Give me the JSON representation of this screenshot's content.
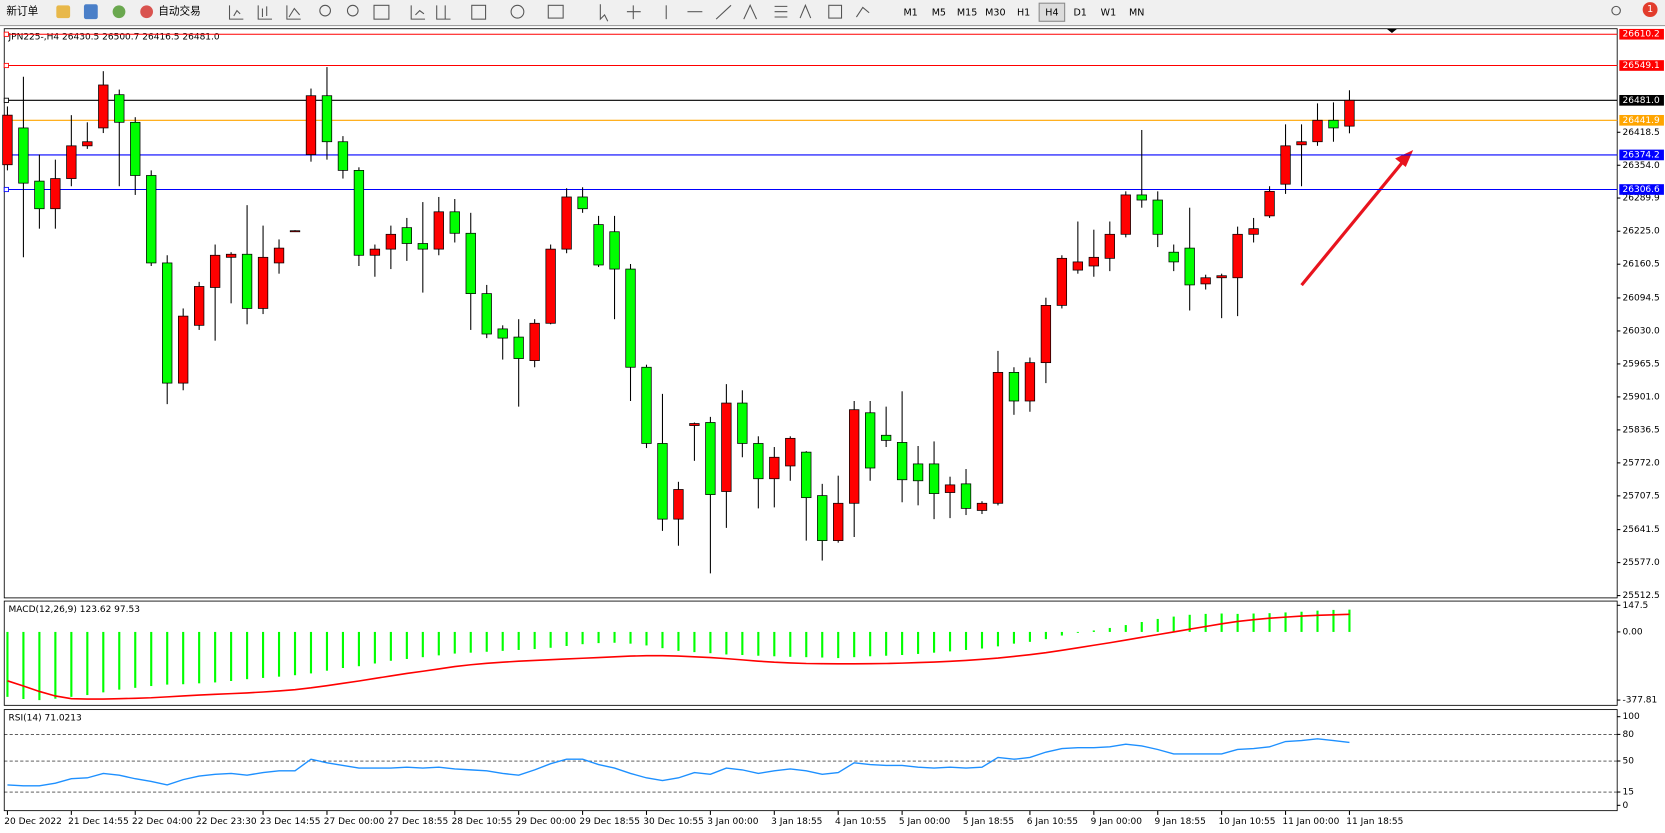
{
  "toolbar": {
    "new_order": "新订单",
    "auto_trading": "自动交易",
    "timeframes": [
      "M1",
      "M5",
      "M15",
      "M30",
      "H1",
      "H4",
      "D1",
      "W1",
      "MN"
    ],
    "active_timeframe": "H4",
    "notifications": 1
  },
  "chart_data": [
    {
      "type": "candlestick",
      "title": "JPN225-,H4  26430.5 26500.7 26416.5 26481.0",
      "up_color": "#ff0000",
      "down_color": "#00ff00",
      "ylim": [
        25508,
        26621
      ],
      "yticks": [
        26418.5,
        {
          "value": 26354.0,
          "label": "26354.0"
        },
        26289.9,
        {
          "value": 26225.0,
          "label": "26225.0"
        },
        26160.5,
        26094.5,
        {
          "value": 26030.0,
          "label": "26030.0"
        },
        25965.5,
        {
          "value": 25901.0,
          "label": "25901.0"
        },
        25836.5,
        {
          "value": 25772.0,
          "label": "25772.0"
        },
        25707.5,
        25641.5,
        {
          "value": 25577.0,
          "label": "25577.0"
        },
        25512.5
      ],
      "levels": [
        {
          "value": 26610.2,
          "label": "26610.2",
          "color": "#ff0000"
        },
        {
          "value": 26549.1,
          "label": "26549.1",
          "color": "#ff0000"
        },
        {
          "value": 26481.0,
          "label": "26481.0",
          "color": "#000000"
        },
        {
          "value": 26441.9,
          "label": "26441.9",
          "color": "#ffa500"
        },
        {
          "value": 26374.2,
          "label": "26374.2",
          "color": "#0000ff"
        },
        {
          "value": 26306.6,
          "label": "26306.6",
          "color": "#0000ff"
        }
      ],
      "categories": [
        "20 Dec 2022",
        null,
        null,
        null,
        "21 Dec 14:55",
        null,
        null,
        null,
        "22 Dec 04:00",
        null,
        null,
        null,
        "22 Dec 23:30",
        null,
        null,
        null,
        "23 Dec 14:55",
        null,
        null,
        null,
        "27 Dec 00:00",
        null,
        null,
        null,
        "27 Dec 18:55",
        null,
        null,
        null,
        "28 Dec 10:55",
        null,
        null,
        null,
        "29 Dec 00:00",
        null,
        null,
        null,
        "29 Dec 18:55",
        null,
        null,
        null,
        "30 Dec 10:55",
        null,
        null,
        null,
        "3 Jan 00:00",
        null,
        null,
        null,
        "3 Jan 18:55",
        null,
        null,
        null,
        "4 Jan 10:55",
        null,
        null,
        null,
        "5 Jan 00:00",
        null,
        null,
        null,
        "5 Jan 18:55",
        null,
        null,
        null,
        "6 Jan 10:55",
        null,
        null,
        null,
        "9 Jan 00:00",
        null,
        null,
        null,
        "9 Jan 18:55",
        null,
        null,
        null,
        "10 Jan 10:55",
        null,
        null,
        null,
        "11 Jan 00:00",
        null,
        null,
        null,
        "11 Jan 18:55"
      ],
      "ohlc": [
        [
          26355,
          26469,
          26344,
          26452
        ],
        [
          26427,
          26527,
          26174,
          26319
        ],
        [
          26323,
          26375,
          26230,
          26269
        ],
        [
          26269,
          26365,
          26230,
          26328
        ],
        [
          26328,
          26452,
          26313,
          26392
        ],
        [
          26392,
          26438,
          26386,
          26400
        ],
        [
          26427,
          26538,
          26417,
          26511
        ],
        [
          26492,
          26502,
          26313,
          26438
        ],
        [
          26438,
          26448,
          26296,
          26334
        ],
        [
          26334,
          26344,
          26157,
          26163
        ],
        [
          26163,
          26178,
          25887,
          25928
        ],
        [
          25928,
          26074,
          25914,
          26059
        ],
        [
          26041,
          26126,
          26032,
          26117
        ],
        [
          26115,
          26199,
          26011,
          26178
        ],
        [
          26174,
          26184,
          26084,
          26180
        ],
        [
          26180,
          26276,
          26043,
          26074
        ],
        [
          26074,
          26236,
          26063,
          26174
        ],
        [
          26163,
          26209,
          26142,
          26192
        ],
        [
          26226,
          26227,
          26225,
          26226
        ],
        [
          26375,
          26504,
          26361,
          26490
        ],
        [
          26490,
          26546,
          26365,
          26400
        ],
        [
          26400,
          26411,
          26328,
          26344
        ],
        [
          26344,
          26350,
          26157,
          26178
        ],
        [
          26178,
          26199,
          26136,
          26190
        ],
        [
          26190,
          26236,
          26151,
          26219
        ],
        [
          26232,
          26251,
          26167,
          26201
        ],
        [
          26201,
          26282,
          26105,
          26190
        ],
        [
          26190,
          26292,
          26178,
          26263
        ],
        [
          26263,
          26288,
          26203,
          26221
        ],
        [
          26221,
          26261,
          26032,
          26103
        ],
        [
          26103,
          26120,
          26016,
          26024
        ],
        [
          26034,
          26041,
          25974,
          26016
        ],
        [
          26018,
          26053,
          25882,
          25976
        ],
        [
          25972,
          26053,
          25959,
          26045
        ],
        [
          26045,
          26199,
          26043,
          26190
        ],
        [
          26190,
          26309,
          26182,
          26292
        ],
        [
          26292,
          26311,
          26261,
          26269
        ],
        [
          26238,
          26255,
          26155,
          26159
        ],
        [
          26224,
          26255,
          26053,
          26151
        ],
        [
          26151,
          26161,
          25893,
          25959
        ],
        [
          25959,
          25964,
          25801,
          25810
        ],
        [
          25810,
          25907,
          25639,
          25662
        ],
        [
          25662,
          25735,
          25610,
          25720
        ],
        [
          25845,
          25851,
          25776,
          25849
        ],
        [
          25851,
          25862,
          25556,
          25710
        ],
        [
          25716,
          25926,
          25645,
          25889
        ],
        [
          25889,
          25914,
          25783,
          25810
        ],
        [
          25810,
          25824,
          25683,
          25741
        ],
        [
          25741,
          25803,
          25685,
          25783
        ],
        [
          25766,
          25824,
          25737,
          25820
        ],
        [
          25793,
          25795,
          25620,
          25704
        ],
        [
          25708,
          25731,
          25581,
          25620
        ],
        [
          25620,
          25747,
          25616,
          25693
        ],
        [
          25693,
          25893,
          25627,
          25876
        ],
        [
          25870,
          25893,
          25737,
          25762
        ],
        [
          25826,
          25882,
          25803,
          25816
        ],
        [
          25812,
          25912,
          25695,
          25739
        ],
        [
          25770,
          25805,
          25689,
          25737
        ],
        [
          25770,
          25814,
          25662,
          25712
        ],
        [
          25714,
          25745,
          25664,
          25729
        ],
        [
          25731,
          25760,
          25670,
          25683
        ],
        [
          25679,
          25697,
          25672,
          25693
        ],
        [
          25693,
          25991,
          25689,
          25949
        ],
        [
          25949,
          25959,
          25866,
          25893
        ],
        [
          25893,
          25978,
          25872,
          25968
        ],
        [
          25968,
          26095,
          25928,
          26080
        ],
        [
          26080,
          26178,
          26074,
          26172
        ],
        [
          26149,
          26244,
          26142,
          26165
        ],
        [
          26157,
          26228,
          26136,
          26174
        ],
        [
          26172,
          26244,
          26147,
          26219
        ],
        [
          26219,
          26303,
          26213,
          26296
        ],
        [
          26296,
          26423,
          26271,
          26286
        ],
        [
          26286,
          26303,
          26194,
          26219
        ],
        [
          26184,
          26199,
          26147,
          26165
        ],
        [
          26192,
          26271,
          26070,
          26120
        ],
        [
          26122,
          26140,
          26111,
          26134
        ],
        [
          26134,
          26142,
          26055,
          26138
        ],
        [
          26134,
          26234,
          26059,
          26219
        ],
        [
          26219,
          26251,
          26203,
          26230
        ],
        [
          26255,
          26313,
          26251,
          26303
        ],
        [
          26317,
          26434,
          26298,
          26392
        ],
        [
          26394,
          26434,
          26313,
          26400
        ],
        [
          26400,
          26475,
          26392,
          26442
        ],
        [
          26442,
          26477,
          26400,
          26427
        ],
        [
          26430.5,
          26500.7,
          26416.5,
          26481
        ]
      ]
    },
    {
      "type": "macd",
      "title": "MACD(12,26,9) 123.62 97.53",
      "color": "#00ff00",
      "signal_color": "#ff0000",
      "ylim": [
        -407,
        171
      ],
      "yticks": [
        147.5,
        {
          "value": 0,
          "label": "0.00"
        },
        -377.81
      ],
      "histogram": [
        -360,
        -372,
        -378,
        -370,
        -360,
        -350,
        -335,
        -320,
        -310,
        -300,
        -292,
        -290,
        -285,
        -280,
        -272,
        -262,
        -255,
        -248,
        -240,
        -230,
        -215,
        -200,
        -190,
        -175,
        -160,
        -150,
        -140,
        -130,
        -120,
        -115,
        -110,
        -105,
        -100,
        -95,
        -88,
        -78,
        -68,
        -62,
        -60,
        -65,
        -75,
        -90,
        -105,
        -112,
        -118,
        -125,
        -128,
        -132,
        -135,
        -138,
        -140,
        -142,
        -145,
        -140,
        -135,
        -132,
        -128,
        -122,
        -115,
        -108,
        -100,
        -92,
        -80,
        -65,
        -55,
        -40,
        -20,
        -5,
        8,
        22,
        38,
        55,
        72,
        85,
        95,
        100,
        102,
        100,
        102,
        104,
        108,
        112,
        118,
        122,
        123.62
      ],
      "signal": [
        -271,
        -300,
        -330,
        -355,
        -370,
        -372,
        -372,
        -370,
        -368,
        -365,
        -360,
        -355,
        -350,
        -346,
        -342,
        -338,
        -333,
        -327,
        -320,
        -310,
        -298,
        -285,
        -272,
        -258,
        -244,
        -230,
        -218,
        -205,
        -192,
        -182,
        -174,
        -168,
        -162,
        -158,
        -154,
        -150,
        -146,
        -142,
        -138,
        -134,
        -132,
        -132,
        -134,
        -138,
        -142,
        -148,
        -155,
        -162,
        -168,
        -172,
        -175,
        -176,
        -177,
        -177,
        -176,
        -175,
        -173,
        -170,
        -167,
        -163,
        -158,
        -152,
        -145,
        -136,
        -126,
        -115,
        -102,
        -88,
        -74,
        -60,
        -45,
        -30,
        -15,
        0,
        15,
        30,
        45,
        58,
        68,
        76,
        82,
        88,
        92,
        95,
        97.53
      ]
    },
    {
      "type": "line",
      "title": "RSI(14) 71.0213",
      "color": "#1e90ff",
      "ylim": [
        -6,
        108
      ],
      "yticks": [
        100,
        80,
        50,
        15,
        0
      ],
      "levels": [
        80,
        50,
        15
      ],
      "values": [
        23,
        22,
        22,
        25,
        30,
        31,
        36,
        34,
        30,
        27,
        23,
        29,
        33,
        35,
        36,
        34,
        37,
        39,
        39,
        52,
        48,
        45,
        42,
        42,
        42,
        43,
        42,
        43,
        41,
        40,
        39,
        36,
        34,
        40,
        47,
        52,
        52,
        46,
        42,
        36,
        31,
        28,
        31,
        37,
        35,
        42,
        40,
        36,
        39,
        41,
        39,
        35,
        37,
        48,
        46,
        45,
        45,
        43,
        42,
        43,
        42,
        43,
        54,
        52,
        54,
        60,
        64,
        65,
        65,
        66,
        69,
        67,
        63,
        58,
        58,
        58,
        58,
        63,
        64,
        66,
        72,
        73,
        75,
        73,
        71.0213
      ]
    }
  ]
}
